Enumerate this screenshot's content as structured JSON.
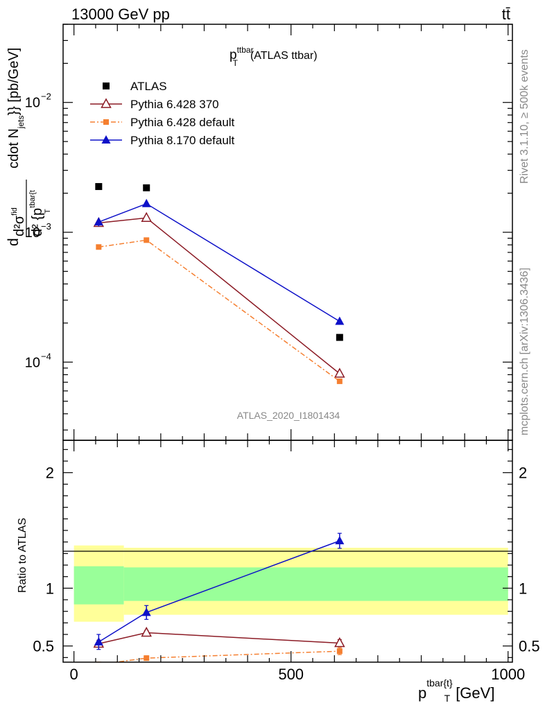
{
  "header": {
    "process": "13000 GeV pp",
    "channel": "tt̄"
  },
  "side_labels": {
    "rivet": "Rivet 3.1.10, ≥ 500k events",
    "mcplots": "mcplots.cern.ch [arXiv:1306.3436]"
  },
  "plot_title": {
    "main": "p",
    "sup": "ttbar",
    "sub": "T",
    "rest": "(ATLAS ttbar)"
  },
  "analysis_label": "ATLAS_2020_I1801434",
  "y_label_main": {
    "line1": "d²σ",
    "line1_sup": "fid",
    "line2": "d² {p",
    "line2_sup": "tbar{t",
    "line2_sub": "T",
    "rest": "cdot N",
    "rest_sub": "jets",
    "rest2": "}} [pb/GeV]",
    "lead": "d"
  },
  "y_label_ratio": "Ratio to ATLAS",
  "x_label": {
    "main": "p",
    "sup": "tbar{t}",
    "sub": "T",
    "rest": "[GeV]"
  },
  "colors": {
    "atlas": "#000000",
    "p6_370": "#8b1a24",
    "p6_default": "#f57f30",
    "p8_default": "#0d10c8",
    "band_inner": "#99ff99",
    "band_outer": "#ffff99"
  },
  "chart_data": [
    {
      "type": "scatter",
      "panel": "main",
      "y_scale": "log",
      "xlim": [
        -25,
        1010
      ],
      "ylim": [
        2.5e-05,
        0.04
      ],
      "y_ticks": [
        {
          "value": 0.01,
          "label": "10",
          "exp": "−2"
        },
        {
          "value": 0.001,
          "label": "10",
          "exp": "−3"
        },
        {
          "value": 0.0001,
          "label": "10",
          "exp": "−4"
        }
      ],
      "series": [
        {
          "name": "ATLAS",
          "style": "square",
          "x": [
            57,
            167,
            612
          ],
          "y": [
            0.00225,
            0.0022,
            0.000155
          ]
        },
        {
          "name": "Pythia 6.428 370",
          "style": "open-triangle",
          "x": [
            57,
            167,
            612
          ],
          "y": [
            0.00118,
            0.00129,
            8.15e-05
          ],
          "yerr": [
            4e-05,
            4e-05,
            4e-06
          ]
        },
        {
          "name": "Pythia 6.428 default",
          "style": "dashdot-square",
          "x": [
            57,
            167,
            612
          ],
          "y": [
            0.00077,
            0.00087,
            7.12e-05
          ],
          "yerr": [
            2e-05,
            2e-05,
            3e-06
          ]
        },
        {
          "name": "Pythia 8.170 default",
          "style": "filled-triangle",
          "x": [
            57,
            167,
            612
          ],
          "y": [
            0.0012,
            0.00166,
            0.000206
          ],
          "yerr": [
            9e-05,
            9e-05,
            1.2e-05
          ]
        }
      ],
      "legend_position": "top-left"
    },
    {
      "type": "line",
      "panel": "ratio",
      "ylabel": "Ratio to ATLAS",
      "xlabel": "p_T^{tbar{t}} [GeV]",
      "xlim": [
        -25,
        1010
      ],
      "ylim": [
        0.36,
        2.28
      ],
      "y_ticks": [
        0.5,
        1,
        2
      ],
      "y_tick_labels": [
        "0.5",
        "1",
        "2"
      ],
      "x_ticks": [
        0,
        500,
        1000
      ],
      "x_tick_labels": [
        "0",
        "500",
        "1000"
      ],
      "reference_line": 1,
      "bands": [
        {
          "x_from": 0,
          "x_to": 115,
          "inner": [
            0.86,
            1.19
          ],
          "outer": [
            0.71,
            1.37
          ]
        },
        {
          "x_from": 115,
          "x_to": 1000,
          "inner": [
            0.89,
            1.18
          ],
          "outer": [
            0.77,
            1.35
          ]
        }
      ],
      "series": [
        {
          "name": "Pythia 6.428 370",
          "x": [
            57,
            167,
            612
          ],
          "y": [
            0.52,
            0.615,
            0.525
          ],
          "yerr": [
            0.03,
            0.02,
            0.03
          ]
        },
        {
          "name": "Pythia 6.428 default",
          "x": [
            57,
            167,
            612
          ],
          "y": [
            0.34,
            0.395,
            0.455
          ],
          "yerr": [
            0.02,
            0.02,
            0.03
          ]
        },
        {
          "name": "Pythia 8.170 default",
          "x": [
            57,
            167,
            612
          ],
          "y": [
            0.535,
            0.79,
            1.41
          ],
          "yerr": [
            0.065,
            0.06,
            0.065
          ]
        }
      ]
    }
  ]
}
